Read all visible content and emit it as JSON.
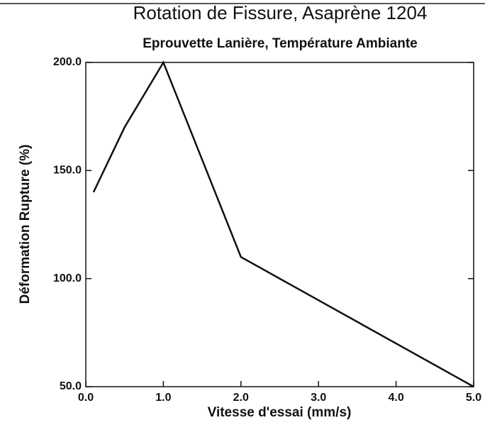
{
  "chart_data": {
    "type": "line",
    "title": "Rotation de Fissure, Asaprène 1204",
    "subtitle": "Eprouvette Lanière, Température Ambiante",
    "xlabel": "Vitesse d'essai (mm/s)",
    "ylabel": "Déformation Rupture (%)",
    "x": [
      0.1,
      0.5,
      1.0,
      2.0,
      5.0
    ],
    "values": [
      140,
      170,
      200,
      110,
      50
    ],
    "color": "#111111",
    "xlim": [
      0,
      5
    ],
    "xticks": [
      {
        "value": 0,
        "label": "0.0"
      },
      {
        "value": 1,
        "label": "1.0"
      },
      {
        "value": 2,
        "label": "2.0"
      },
      {
        "value": 3,
        "label": "3.0"
      },
      {
        "value": 4,
        "label": "4.0"
      },
      {
        "value": 5,
        "label": "5.0"
      }
    ],
    "ylim": [
      50,
      200
    ],
    "yticks": [
      {
        "value": 50,
        "label": "50.0"
      },
      {
        "value": 100,
        "label": "100.0"
      },
      {
        "value": 150,
        "label": "150.0"
      },
      {
        "value": 200,
        "label": "200.0"
      }
    ]
  }
}
